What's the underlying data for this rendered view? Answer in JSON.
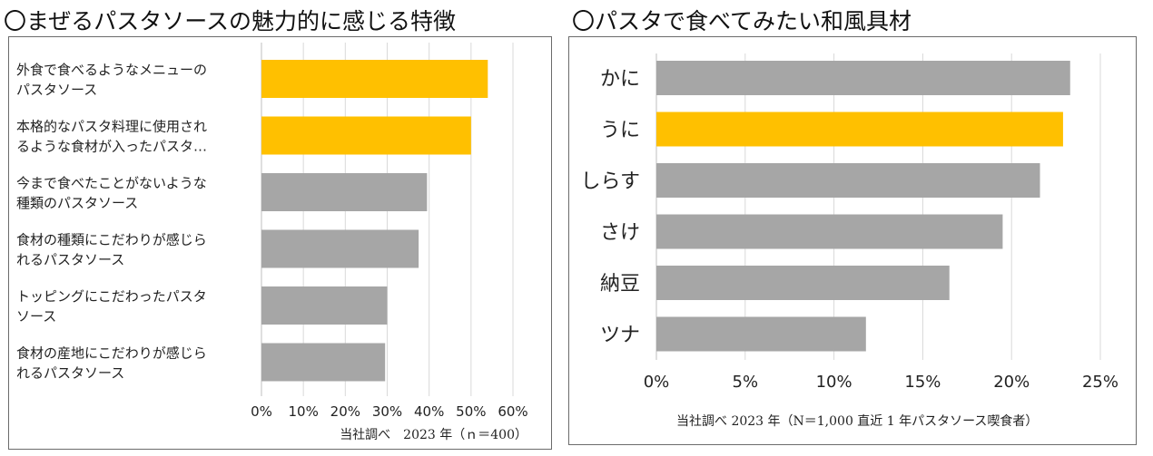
{
  "chart_data": [
    {
      "type": "bar",
      "orientation": "horizontal",
      "title": "〇まぜるパスタソースの魅力的に感じる特徴",
      "categories": [
        [
          "外食で食べるようなメニューの",
          "パスタソース"
        ],
        [
          "本格的なパスタ料理に使用され",
          "るような食材が入ったパスタ…"
        ],
        [
          "今まで食べたことがないような",
          "種類のパスタソース"
        ],
        [
          "食材の種類にこだわりが感じら",
          "れるパスタソース"
        ],
        [
          "トッピングにこだわったパスタ",
          "ソース"
        ],
        [
          "食材の産地にこだわりが感じら",
          "れるパスタソース"
        ]
      ],
      "values": [
        54,
        50,
        39.5,
        37.5,
        30,
        29.5
      ],
      "highlight": [
        true,
        true,
        false,
        false,
        false,
        false
      ],
      "xlim": [
        0,
        60
      ],
      "xticks": [
        0,
        10,
        20,
        30,
        40,
        50,
        60
      ],
      "tick_labels": [
        "0%",
        "10%",
        "20%",
        "30%",
        "40%",
        "50%",
        "60%"
      ],
      "grid": true,
      "source_note": "当社調べ　2023 年（ｎ＝400）"
    },
    {
      "type": "bar",
      "orientation": "horizontal",
      "title": "〇パスタで食べてみたい和風具材",
      "categories": [
        [
          "かに"
        ],
        [
          "うに"
        ],
        [
          "しらす"
        ],
        [
          "さけ"
        ],
        [
          "納豆"
        ],
        [
          "ツナ"
        ]
      ],
      "values": [
        23.3,
        22.9,
        21.6,
        19.5,
        16.5,
        11.8
      ],
      "highlight": [
        false,
        true,
        false,
        false,
        false,
        false
      ],
      "xlim": [
        0,
        25
      ],
      "xticks": [
        0,
        5,
        10,
        15,
        20,
        25
      ],
      "tick_labels": [
        "0%",
        "5%",
        "10%",
        "15%",
        "20%",
        "25%"
      ],
      "grid": true,
      "source_note": "当社調べ 2023 年（N＝1,000 直近 1 年パスタソース喫食者）"
    }
  ],
  "colors": {
    "highlight": "#ffc000",
    "normal": "#a6a6a6",
    "grid": "#d9d9d9"
  }
}
